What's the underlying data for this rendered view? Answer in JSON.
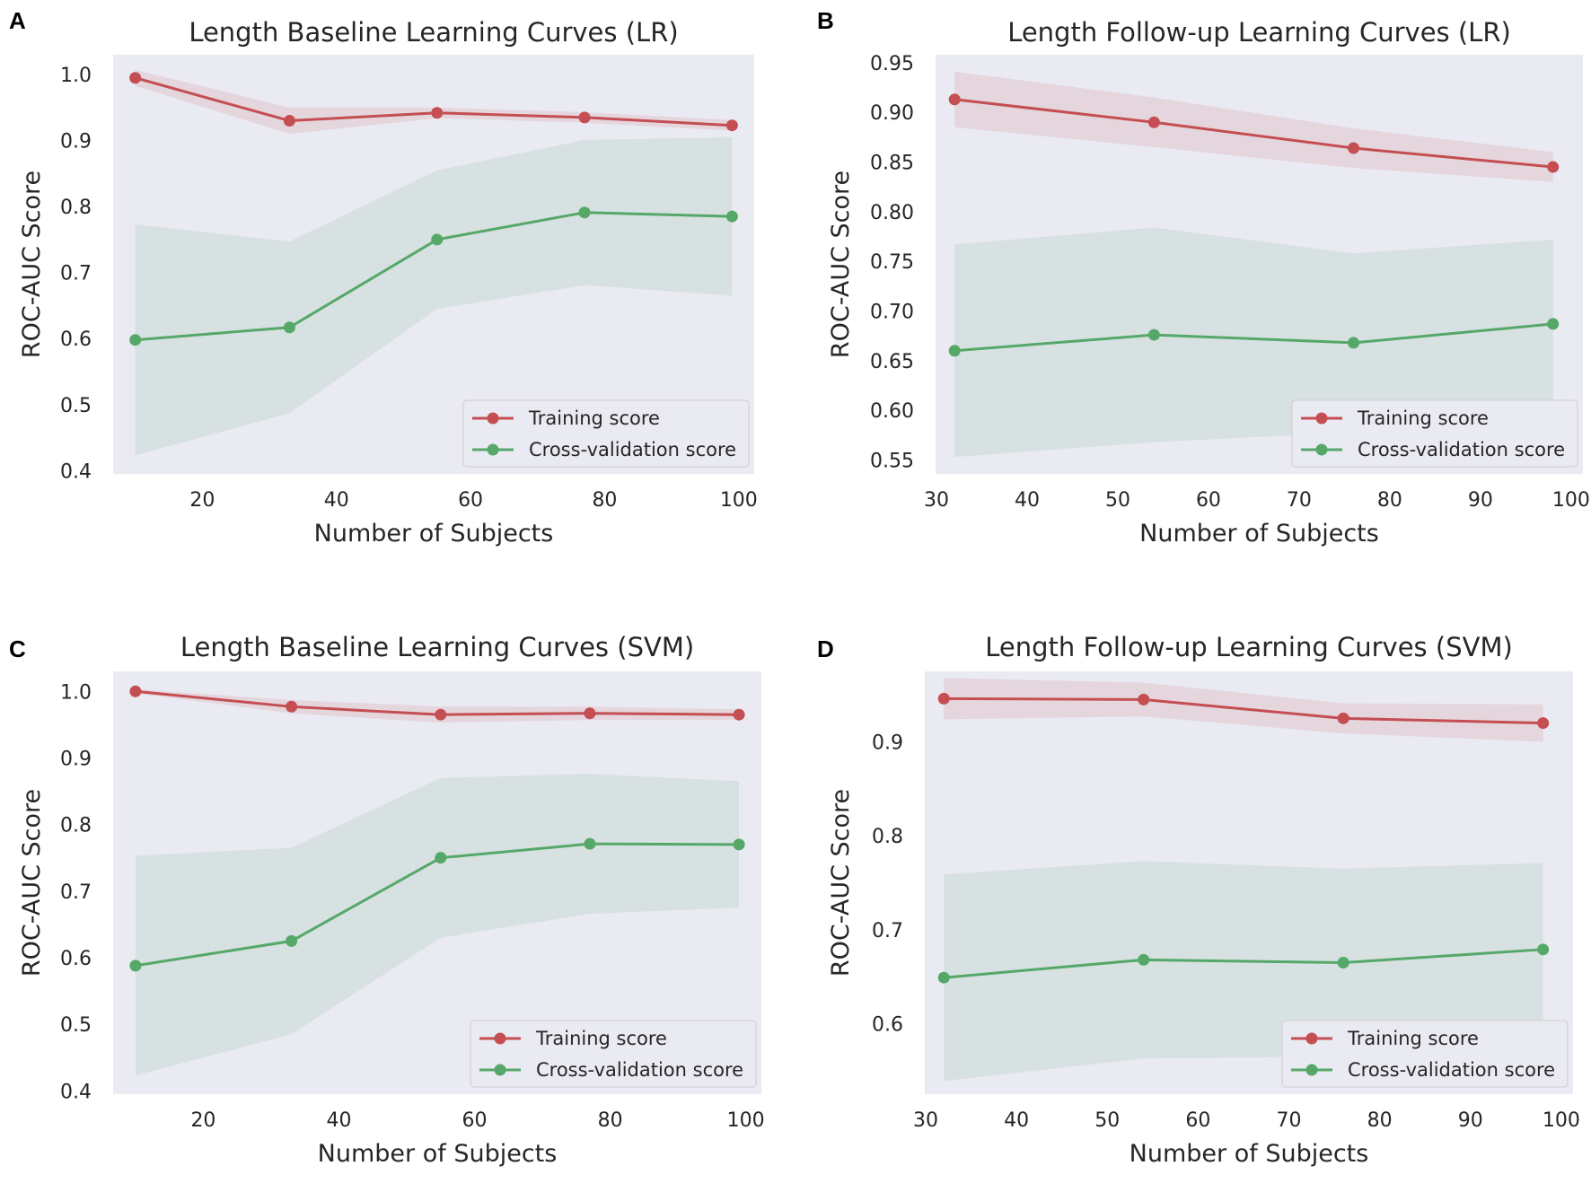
{
  "colors": {
    "background": "#eaeaf2",
    "training": "#c44e52",
    "cv": "#55a868"
  },
  "chart_data": [
    {
      "panel": "A",
      "type": "line",
      "title": "Length Baseline Learning Curves (LR)",
      "xlabel": "Number of Subjects",
      "ylabel": "ROC-AUC Score",
      "xlim": [
        6.7,
        102.3
      ],
      "ylim": [
        0.395,
        1.03
      ],
      "xticks": [
        20,
        40,
        60,
        80,
        100
      ],
      "yticks": [
        0.4,
        0.5,
        0.6,
        0.7,
        0.8,
        0.9,
        1.0
      ],
      "ytick_labels": [
        "0.4",
        "0.5",
        "0.6",
        "0.7",
        "0.8",
        "0.9",
        "1.0"
      ],
      "grid": false,
      "legend": "lower-right",
      "x": [
        10,
        33,
        55,
        77,
        99
      ],
      "series": [
        {
          "name": "Training score",
          "color_key": "training",
          "values": [
            0.995,
            0.93,
            0.942,
            0.935,
            0.923
          ],
          "std": [
            0.012,
            0.02,
            0.008,
            0.008,
            0.008
          ]
        },
        {
          "name": "Cross-validation score",
          "color_key": "cv",
          "values": [
            0.598,
            0.617,
            0.75,
            0.791,
            0.785
          ],
          "std": [
            0.175,
            0.13,
            0.105,
            0.11,
            0.12
          ]
        }
      ]
    },
    {
      "panel": "B",
      "type": "line",
      "title": "Length Follow-up Learning Curves (LR)",
      "xlabel": "Number of Subjects",
      "ylabel": "ROC-AUC Score",
      "xlim": [
        29.9,
        101.3
      ],
      "ylim": [
        0.536,
        0.958
      ],
      "xticks": [
        30,
        40,
        50,
        60,
        70,
        80,
        90,
        100
      ],
      "yticks": [
        0.55,
        0.6,
        0.65,
        0.7,
        0.75,
        0.8,
        0.85,
        0.9,
        0.95
      ],
      "ytick_labels": [
        "0.55",
        "0.60",
        "0.65",
        "0.70",
        "0.75",
        "0.80",
        "0.85",
        "0.90",
        "0.95"
      ],
      "grid": false,
      "legend": "lower-right",
      "x": [
        32,
        54,
        76,
        98
      ],
      "series": [
        {
          "name": "Training score",
          "color_key": "training",
          "values": [
            0.913,
            0.89,
            0.864,
            0.845
          ],
          "std": [
            0.028,
            0.025,
            0.02,
            0.015
          ]
        },
        {
          "name": "Cross-validation score",
          "color_key": "cv",
          "values": [
            0.66,
            0.676,
            0.668,
            0.687
          ],
          "std": [
            0.107,
            0.108,
            0.09,
            0.085
          ]
        }
      ]
    },
    {
      "panel": "C",
      "type": "line",
      "title": "Length Baseline Learning Curves (SVM)",
      "xlabel": "Number of Subjects",
      "ylabel": "ROC-AUC Score",
      "xlim": [
        6.7,
        102.3
      ],
      "ylim": [
        0.395,
        1.03
      ],
      "xticks": [
        20,
        40,
        60,
        80,
        100
      ],
      "yticks": [
        0.4,
        0.5,
        0.6,
        0.7,
        0.8,
        0.9,
        1.0
      ],
      "ytick_labels": [
        "0.4",
        "0.5",
        "0.6",
        "0.7",
        "0.8",
        "0.9",
        "1.0"
      ],
      "grid": false,
      "legend": "lower-right",
      "x": [
        10,
        33,
        55,
        77,
        99
      ],
      "series": [
        {
          "name": "Training score",
          "color_key": "training",
          "values": [
            1.0,
            0.977,
            0.965,
            0.967,
            0.965
          ],
          "std": [
            0.003,
            0.01,
            0.012,
            0.01,
            0.008
          ]
        },
        {
          "name": "Cross-validation score",
          "color_key": "cv",
          "values": [
            0.588,
            0.625,
            0.75,
            0.771,
            0.77
          ],
          "std": [
            0.165,
            0.14,
            0.12,
            0.105,
            0.095
          ]
        }
      ]
    },
    {
      "panel": "D",
      "type": "line",
      "title": "Length Follow-up Learning Curves (SVM)",
      "xlabel": "Number of Subjects",
      "ylabel": "ROC-AUC Score",
      "xlim": [
        29.9,
        101.3
      ],
      "ylim": [
        0.525,
        0.975
      ],
      "xticks": [
        30,
        40,
        50,
        60,
        70,
        80,
        90,
        100
      ],
      "yticks": [
        0.6,
        0.7,
        0.8,
        0.9
      ],
      "ytick_labels": [
        "0.6",
        "0.7",
        "0.8",
        "0.9"
      ],
      "grid": false,
      "legend": "lower-right",
      "x": [
        32,
        54,
        76,
        98
      ],
      "series": [
        {
          "name": "Training score",
          "color_key": "training",
          "values": [
            0.946,
            0.945,
            0.925,
            0.92
          ],
          "std": [
            0.022,
            0.018,
            0.016,
            0.02
          ]
        },
        {
          "name": "Cross-validation score",
          "color_key": "cv",
          "values": [
            0.649,
            0.668,
            0.665,
            0.679
          ],
          "std": [
            0.11,
            0.105,
            0.1,
            0.092
          ]
        }
      ]
    }
  ]
}
